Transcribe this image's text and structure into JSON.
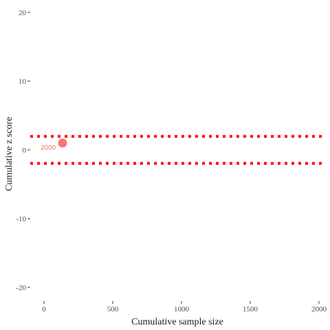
{
  "chart_data": {
    "type": "scatter",
    "xlabel": "Cumulative sample size",
    "ylabel": "Cumulative z score",
    "xlim": [
      -100,
      2050
    ],
    "ylim": [
      -22,
      21
    ],
    "x_ticks": [
      0,
      500,
      1000,
      1500,
      2000
    ],
    "y_ticks": [
      -20,
      -10,
      0,
      10,
      20
    ],
    "grid": false,
    "series": [
      {
        "points": [
          {
            "x": 135,
            "y": 1,
            "label": "2000"
          }
        ],
        "color": "#f8766d"
      }
    ],
    "reference_lines": [
      {
        "y": 1.96,
        "style": "dotted",
        "color": "#ff0000"
      },
      {
        "y": -1.96,
        "style": "dotted",
        "color": "#ff0000"
      }
    ]
  }
}
